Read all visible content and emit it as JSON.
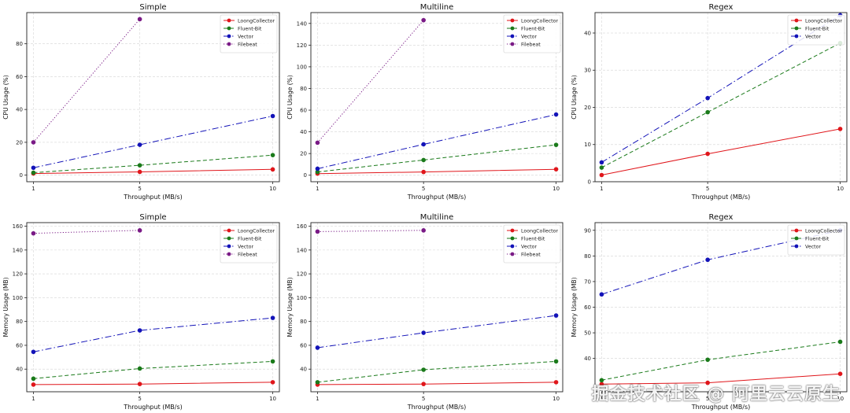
{
  "colors": {
    "LoongCollector": "#e0161b",
    "Fluent-Bit": "#1a7a1a",
    "Vector": "#1313b8",
    "Filebeat": "#7a1a86",
    "grid": "#dcdcdc"
  },
  "watermark": "掘金技术社区 @ 阿里云云原生",
  "chart_data": [
    {
      "type": "line",
      "title": "Simple",
      "xlabel": "Throughput (MB/s)",
      "ylabel": "CPU Usage (%)",
      "xticks": [
        1,
        5,
        10
      ],
      "yticks": [
        0,
        20,
        40,
        60,
        80
      ],
      "xlim": [
        0.75,
        10.25
      ],
      "ylim": [
        -4,
        99
      ],
      "grid": true,
      "legend": "top-right",
      "series": [
        {
          "name": "LoongCollector",
          "x": [
            1,
            5,
            10
          ],
          "y": [
            1.0,
            2.0,
            3.5
          ]
        },
        {
          "name": "Fluent-Bit",
          "x": [
            1,
            5,
            10
          ],
          "y": [
            1.5,
            6.0,
            12.2
          ]
        },
        {
          "name": "Vector",
          "x": [
            1,
            5,
            10
          ],
          "y": [
            4.5,
            18.5,
            36.0
          ]
        },
        {
          "name": "Filebeat",
          "x": [
            1,
            5
          ],
          "y": [
            20.0,
            95.0
          ]
        }
      ]
    },
    {
      "type": "line",
      "title": "Multiline",
      "xlabel": "Throughput (MB/s)",
      "ylabel": "CPU Usage (%)",
      "xticks": [
        1,
        5,
        10
      ],
      "yticks": [
        0,
        20,
        40,
        60,
        80,
        100,
        120,
        140
      ],
      "xlim": [
        0.75,
        10.25
      ],
      "ylim": [
        -6,
        150
      ],
      "grid": true,
      "legend": "top-right",
      "series": [
        {
          "name": "LoongCollector",
          "x": [
            1,
            5,
            10
          ],
          "y": [
            1.5,
            3.0,
            5.5
          ]
        },
        {
          "name": "Fluent-Bit",
          "x": [
            1,
            5,
            10
          ],
          "y": [
            3.0,
            14.0,
            28.0
          ]
        },
        {
          "name": "Vector",
          "x": [
            1,
            5,
            10
          ],
          "y": [
            6.0,
            28.5,
            56.0
          ]
        },
        {
          "name": "Filebeat",
          "x": [
            1,
            5
          ],
          "y": [
            30.0,
            143.0
          ]
        }
      ]
    },
    {
      "type": "line",
      "title": "Regex",
      "xlabel": "Throughput (MB/s)",
      "ylabel": "CPU Usage (%)",
      "xticks": [
        1,
        5,
        10
      ],
      "yticks": [
        0,
        10,
        20,
        30,
        40
      ],
      "xlim": [
        0.75,
        10.25
      ],
      "ylim": [
        0,
        45.5
      ],
      "grid": true,
      "legend": "top-right",
      "series": [
        {
          "name": "LoongCollector",
          "x": [
            1,
            5,
            10
          ],
          "y": [
            1.8,
            7.5,
            14.2
          ]
        },
        {
          "name": "Fluent-Bit",
          "x": [
            1,
            5,
            10
          ],
          "y": [
            3.8,
            18.7,
            37.3
          ]
        },
        {
          "name": "Vector",
          "x": [
            1,
            5,
            10
          ],
          "y": [
            5.2,
            22.5,
            44.8
          ]
        }
      ]
    },
    {
      "type": "line",
      "title": "Simple",
      "xlabel": "Throughput (MB/s)",
      "ylabel": "Memory Usage (MB)",
      "xticks": [
        1,
        5,
        10
      ],
      "yticks": [
        40,
        60,
        80,
        100,
        120,
        140,
        160
      ],
      "xlim": [
        0.75,
        10.25
      ],
      "ylim": [
        21,
        163
      ],
      "grid": true,
      "legend": "top-right",
      "series": [
        {
          "name": "LoongCollector",
          "x": [
            1,
            5,
            10
          ],
          "y": [
            27.0,
            27.5,
            29.0
          ]
        },
        {
          "name": "Fluent-Bit",
          "x": [
            1,
            5,
            10
          ],
          "y": [
            32.0,
            40.5,
            46.5
          ]
        },
        {
          "name": "Vector",
          "x": [
            1,
            5,
            10
          ],
          "y": [
            54.5,
            72.5,
            83.0
          ]
        },
        {
          "name": "Filebeat",
          "x": [
            1,
            5
          ],
          "y": [
            154.0,
            156.5
          ]
        }
      ]
    },
    {
      "type": "line",
      "title": "Multiline",
      "xlabel": "Throughput (MB/s)",
      "ylabel": "Memory Usage (MB)",
      "xticks": [
        1,
        5,
        10
      ],
      "yticks": [
        40,
        60,
        80,
        100,
        120,
        140,
        160
      ],
      "xlim": [
        0.75,
        10.25
      ],
      "ylim": [
        21,
        163
      ],
      "grid": true,
      "legend": "top-right",
      "series": [
        {
          "name": "LoongCollector",
          "x": [
            1,
            5,
            10
          ],
          "y": [
            27.0,
            27.5,
            29.0
          ]
        },
        {
          "name": "Fluent-Bit",
          "x": [
            1,
            5,
            10
          ],
          "y": [
            29.0,
            39.5,
            46.5
          ]
        },
        {
          "name": "Vector",
          "x": [
            1,
            5,
            10
          ],
          "y": [
            58.0,
            70.5,
            85.0
          ]
        },
        {
          "name": "Filebeat",
          "x": [
            1,
            5
          ],
          "y": [
            155.5,
            156.5
          ]
        }
      ]
    },
    {
      "type": "line",
      "title": "Regex",
      "xlabel": "Throughput (MB/s)",
      "ylabel": "Memory Usage (MB)",
      "xticks": [
        1,
        5,
        10
      ],
      "yticks": [
        40,
        50,
        60,
        70,
        80,
        90
      ],
      "xlim": [
        0.75,
        10.25
      ],
      "ylim": [
        27,
        93
      ],
      "grid": true,
      "legend": "top-right",
      "series": [
        {
          "name": "LoongCollector",
          "x": [
            1,
            5,
            10
          ],
          "y": [
            30.0,
            30.5,
            34.0
          ]
        },
        {
          "name": "Fluent-Bit",
          "x": [
            1,
            5,
            10
          ],
          "y": [
            31.5,
            39.5,
            46.5
          ]
        },
        {
          "name": "Vector",
          "x": [
            1,
            5,
            10
          ],
          "y": [
            65.0,
            78.5,
            90.0
          ]
        }
      ]
    }
  ]
}
